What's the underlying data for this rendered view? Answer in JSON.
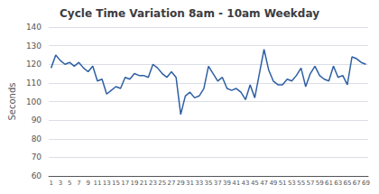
{
  "chart_data": {
    "type": "line",
    "title": "Cycle Time Variation 8am - 10am Weekday",
    "ylabel": "Seconds",
    "x": [
      1,
      2,
      3,
      4,
      5,
      6,
      7,
      8,
      9,
      10,
      11,
      12,
      13,
      14,
      15,
      16,
      17,
      18,
      19,
      20,
      21,
      22,
      23,
      24,
      25,
      26,
      27,
      28,
      29,
      30,
      31,
      32,
      33,
      34,
      35,
      36,
      37,
      38,
      39,
      40,
      41,
      42,
      43,
      44,
      45,
      46,
      47,
      48,
      49,
      50,
      51,
      52,
      53,
      54,
      55,
      56,
      57,
      58,
      59,
      60,
      61,
      62,
      63,
      64,
      65,
      66,
      67,
      68,
      69
    ],
    "values": [
      118,
      125,
      122,
      120,
      121,
      119,
      121,
      118,
      116,
      119,
      111,
      112,
      104,
      106,
      108,
      107,
      113,
      112,
      115,
      114,
      114,
      113,
      120,
      118,
      115,
      113,
      116,
      113,
      93,
      103,
      105,
      102,
      103,
      107,
      119,
      115,
      111,
      113,
      107,
      106,
      107,
      105,
      101,
      109,
      102,
      115,
      128,
      117,
      111,
      109,
      109,
      112,
      111,
      114,
      118,
      108,
      115,
      119,
      114,
      112,
      111,
      119,
      113,
      114,
      109,
      124,
      123,
      121,
      120
    ],
    "color": "#2E5FA3",
    "xlim": [
      0.5,
      69.5
    ],
    "ylim": [
      60,
      140
    ],
    "xticks": [
      1,
      3,
      5,
      7,
      9,
      11,
      13,
      15,
      17,
      19,
      21,
      23,
      25,
      27,
      29,
      31,
      33,
      35,
      37,
      39,
      41,
      43,
      45,
      47,
      49,
      51,
      53,
      55,
      57,
      59,
      61,
      63,
      65,
      67,
      69
    ],
    "yticks": [
      60,
      70,
      80,
      90,
      100,
      110,
      120,
      130,
      140
    ],
    "grid": true
  }
}
